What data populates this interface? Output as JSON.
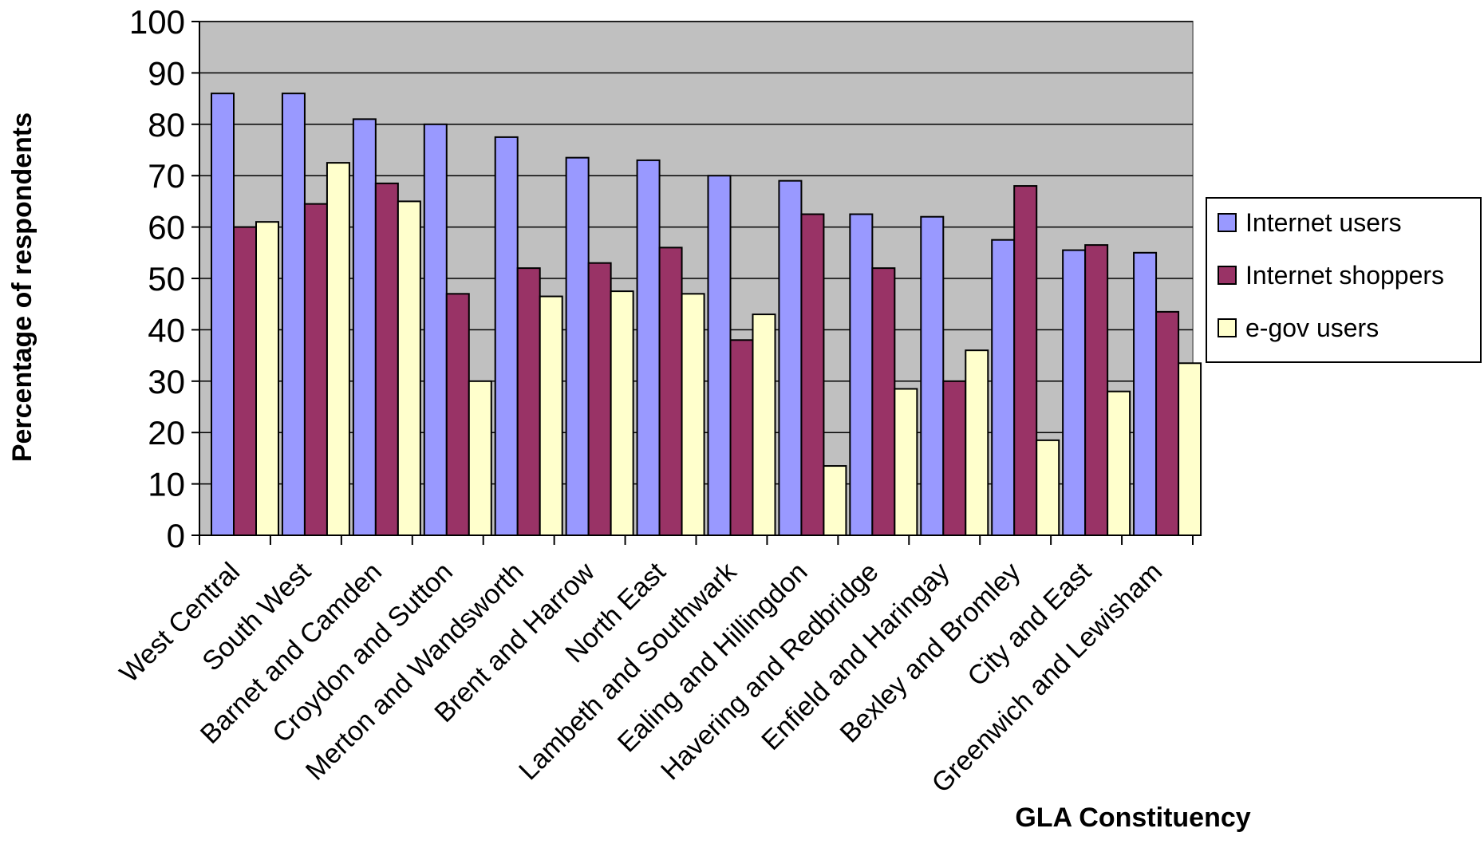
{
  "chart_data": {
    "type": "bar",
    "title": "",
    "xlabel": "GLA Constituency",
    "ylabel": "Percentage of respondents",
    "ylim": [
      0,
      100
    ],
    "yticks": [
      0,
      10,
      20,
      30,
      40,
      50,
      60,
      70,
      80,
      90,
      100
    ],
    "grid": true,
    "legend_position": "right",
    "plot_background": "#c0c0c0",
    "categories": [
      "West Central",
      "South West",
      "Barnet and Camden",
      "Croydon and Sutton",
      "Merton and Wandsworth",
      "Brent and Harrow",
      "North East",
      "Lambeth and Southwark",
      "Ealing and Hillingdon",
      "Havering and Redbridge",
      "Enfield and Haringay",
      "Bexley and Bromley",
      "City and East",
      "Greenwich and Lewisham"
    ],
    "series": [
      {
        "name": "Internet users",
        "color": "#9999ff",
        "values": [
          86,
          86,
          81,
          80,
          77.5,
          73.5,
          73,
          70,
          69,
          62.5,
          62,
          57.5,
          55.5,
          55
        ]
      },
      {
        "name": "Internet shoppers",
        "color": "#993366",
        "values": [
          60,
          64.5,
          68.5,
          47,
          52,
          53,
          56,
          38,
          62.5,
          52,
          30,
          68,
          56.5,
          43.5
        ]
      },
      {
        "name": "e-gov users",
        "color": "#ffffcc",
        "values": [
          61,
          72.5,
          65,
          30,
          46.5,
          47.5,
          47,
          43,
          13.5,
          28.5,
          36,
          18.5,
          28,
          33.5
        ]
      }
    ]
  }
}
